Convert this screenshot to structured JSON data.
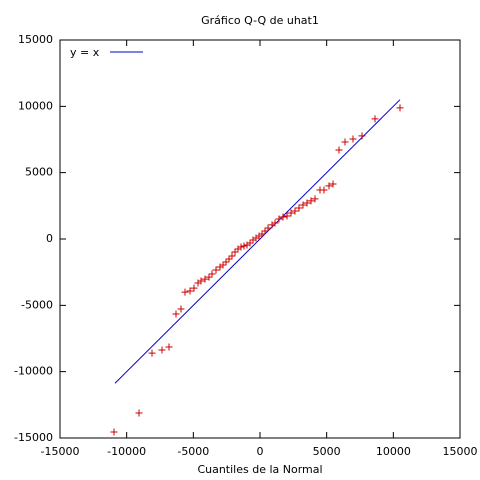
{
  "chart_data": {
    "type": "scatter",
    "title": "Gráfico Q-Q de uhat1",
    "xlabel": "Cuantiles de la Normal",
    "xlim": [
      -15000,
      15000
    ],
    "ylim": [
      -15000,
      15000
    ],
    "xticks": [
      -15000,
      -10000,
      -5000,
      0,
      5000,
      10000,
      15000
    ],
    "yticks": [
      -15000,
      -10000,
      -5000,
      0,
      5000,
      10000,
      15000
    ],
    "legend": "upper left",
    "points": {
      "color": "#cc0000",
      "x": [
        -10950,
        -9075,
        -8100,
        -7350,
        -6825,
        -6300,
        -5925,
        -5625,
        -5250,
        -4950,
        -4650,
        -4425,
        -4125,
        -3825,
        -3600,
        -3300,
        -3000,
        -2775,
        -2550,
        -2325,
        -2100,
        -1875,
        -1650,
        -1425,
        -1200,
        -975,
        -750,
        -525,
        -300,
        -75,
        150,
        375,
        600,
        900,
        1125,
        1425,
        1725,
        2025,
        2325,
        2625,
        2925,
        3225,
        3525,
        3825,
        4125,
        4500,
        4800,
        5175,
        5475,
        5925,
        6375,
        6975,
        7650,
        8625,
        10500
      ],
      "y": [
        -14550,
        -13120,
        -8600,
        -8370,
        -8140,
        -5650,
        -5280,
        -4000,
        -3920,
        -3700,
        -3320,
        -3170,
        -3020,
        -2870,
        -2640,
        -2340,
        -2110,
        -1960,
        -1730,
        -1510,
        -1280,
        -980,
        -750,
        -600,
        -530,
        -450,
        -300,
        -75,
        75,
        225,
        375,
        600,
        830,
        1060,
        1210,
        1510,
        1660,
        1730,
        1960,
        2110,
        2340,
        2560,
        2710,
        2870,
        3020,
        3690,
        3690,
        4000,
        4150,
        6710,
        7310,
        7540,
        7770,
        9050,
        9880
      ]
    },
    "line": {
      "name": "y = x",
      "color": "#0000cc",
      "x": [
        -10875,
        10500
      ],
      "y": [
        -10875,
        10500
      ]
    }
  }
}
